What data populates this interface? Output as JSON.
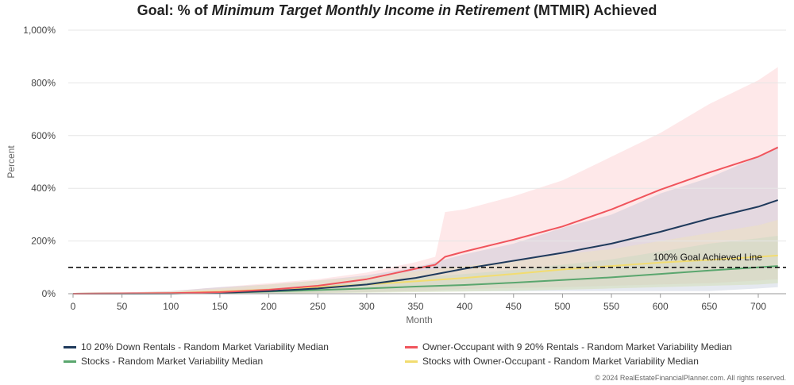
{
  "title": {
    "prefix": "Goal: % of ",
    "emphasis": "Minimum Target Monthly Income in Retirement",
    "suffix": " (MTMIR) Achieved"
  },
  "chart_data": {
    "type": "area",
    "xlabel": "Month",
    "ylabel": "Percent",
    "xlim": [
      0,
      720
    ],
    "ylim": [
      0,
      1000
    ],
    "x_ticks": [
      "0",
      "50",
      "100",
      "150",
      "200",
      "250",
      "300",
      "350",
      "400",
      "450",
      "500",
      "550",
      "600",
      "650",
      "700"
    ],
    "y_ticks": [
      "0%",
      "200%",
      "400%",
      "600%",
      "800%",
      "1,000%"
    ],
    "grid": "horizontal",
    "legend_position": "bottom",
    "reference_line": {
      "value": 100,
      "label": "100% Goal Achieved Line",
      "style": "dashed"
    },
    "series": [
      {
        "name": "10 20% Down Rentals - Random Market Variability Median",
        "color": "#1f3a5c",
        "x": [
          0,
          100,
          150,
          200,
          250,
          300,
          350,
          400,
          450,
          500,
          550,
          600,
          650,
          700,
          720
        ],
        "values": [
          0,
          1,
          4,
          10,
          20,
          35,
          60,
          95,
          125,
          155,
          190,
          235,
          285,
          330,
          355
        ],
        "band_low": [
          0,
          0,
          0,
          1,
          3,
          6,
          10,
          10,
          10,
          10,
          10,
          10,
          10,
          20,
          25
        ],
        "band_high": [
          0,
          10,
          25,
          35,
          50,
          70,
          100,
          150,
          190,
          250,
          300,
          380,
          440,
          520,
          560
        ]
      },
      {
        "name": "Owner-Occupant with 9 20% Rentals - Random Market Variability Median",
        "color": "#f0545c",
        "x": [
          0,
          100,
          150,
          200,
          250,
          300,
          350,
          370,
          380,
          400,
          450,
          500,
          550,
          600,
          650,
          700,
          720
        ],
        "values": [
          0,
          2,
          6,
          15,
          30,
          55,
          95,
          110,
          140,
          160,
          205,
          255,
          320,
          395,
          460,
          520,
          555
        ],
        "band_low": [
          0,
          0,
          0,
          1,
          3,
          6,
          10,
          12,
          15,
          18,
          22,
          25,
          30,
          35,
          40,
          50,
          55
        ],
        "band_high": [
          0,
          10,
          25,
          40,
          55,
          80,
          120,
          140,
          310,
          320,
          370,
          430,
          520,
          610,
          720,
          810,
          860
        ]
      },
      {
        "name": "Stocks - Random Market Variability Median",
        "color": "#5aa66e",
        "x": [
          0,
          100,
          150,
          200,
          250,
          300,
          350,
          400,
          450,
          500,
          550,
          600,
          650,
          700,
          720
        ],
        "values": [
          0,
          1,
          3,
          8,
          14,
          20,
          27,
          33,
          42,
          52,
          62,
          75,
          88,
          100,
          105
        ],
        "band_low": [
          0,
          0,
          0,
          1,
          2,
          4,
          6,
          8,
          10,
          15,
          20,
          25,
          30,
          35,
          40
        ],
        "band_high": [
          0,
          5,
          10,
          20,
          30,
          45,
          60,
          75,
          90,
          110,
          130,
          160,
          190,
          210,
          220
        ]
      },
      {
        "name": "Stocks with Owner-Occupant - Random Market Variability Median",
        "color": "#f2dc70",
        "x": [
          0,
          100,
          150,
          200,
          250,
          300,
          350,
          400,
          450,
          500,
          550,
          600,
          650,
          700,
          720
        ],
        "values": [
          0,
          2,
          8,
          16,
          25,
          35,
          47,
          60,
          75,
          92,
          105,
          118,
          128,
          140,
          145
        ],
        "band_low": [
          0,
          0,
          0,
          1,
          2,
          4,
          6,
          8,
          12,
          15,
          20,
          25,
          30,
          35,
          40
        ],
        "band_high": [
          0,
          8,
          20,
          35,
          50,
          65,
          85,
          105,
          125,
          150,
          170,
          200,
          230,
          260,
          280
        ]
      }
    ]
  },
  "copyright": "© 2024 RealEstateFinancialPlanner.com. All rights reserved."
}
